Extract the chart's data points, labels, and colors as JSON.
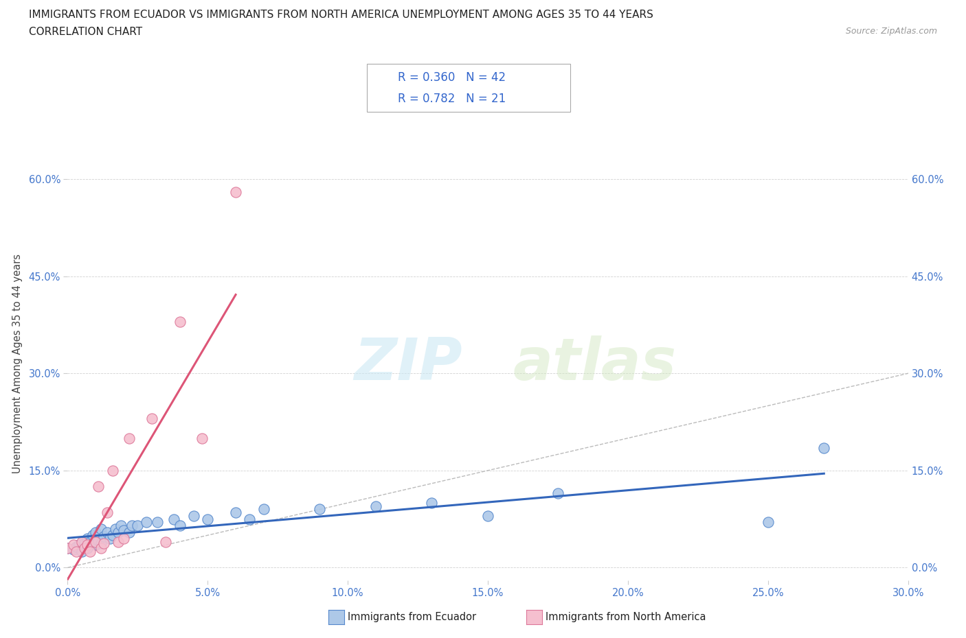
{
  "title_line1": "IMMIGRANTS FROM ECUADOR VS IMMIGRANTS FROM NORTH AMERICA UNEMPLOYMENT AMONG AGES 35 TO 44 YEARS",
  "title_line2": "CORRELATION CHART",
  "source_text": "Source: ZipAtlas.com",
  "ylabel": "Unemployment Among Ages 35 to 44 years",
  "xlim": [
    0.0,
    0.3
  ],
  "ylim": [
    -0.02,
    0.65
  ],
  "xtick_labels": [
    "0.0%",
    "5.0%",
    "10.0%",
    "15.0%",
    "20.0%",
    "25.0%",
    "30.0%"
  ],
  "xtick_vals": [
    0.0,
    0.05,
    0.1,
    0.15,
    0.2,
    0.25,
    0.3
  ],
  "ytick_labels": [
    "0.0%",
    "15.0%",
    "30.0%",
    "45.0%",
    "60.0%"
  ],
  "ytick_vals": [
    0.0,
    0.15,
    0.3,
    0.45,
    0.6
  ],
  "ecuador_color": "#adc8e8",
  "ecuador_edge": "#5588cc",
  "north_america_color": "#f5bfcf",
  "north_america_edge": "#dd7799",
  "trend_ecuador_color": "#3366bb",
  "trend_north_america_color": "#dd5577",
  "diagonal_color": "#bbbbbb",
  "R_ecuador": 0.36,
  "N_ecuador": 42,
  "R_north_america": 0.782,
  "N_north_america": 21,
  "ecuador_x": [
    0.0,
    0.002,
    0.003,
    0.004,
    0.005,
    0.006,
    0.007,
    0.007,
    0.008,
    0.009,
    0.01,
    0.01,
    0.011,
    0.012,
    0.012,
    0.013,
    0.014,
    0.015,
    0.016,
    0.017,
    0.018,
    0.019,
    0.02,
    0.022,
    0.023,
    0.025,
    0.028,
    0.032,
    0.038,
    0.04,
    0.045,
    0.05,
    0.06,
    0.065,
    0.07,
    0.09,
    0.11,
    0.13,
    0.15,
    0.175,
    0.25,
    0.27
  ],
  "ecuador_y": [
    0.03,
    0.028,
    0.032,
    0.035,
    0.025,
    0.038,
    0.03,
    0.045,
    0.04,
    0.05,
    0.035,
    0.055,
    0.042,
    0.038,
    0.06,
    0.048,
    0.055,
    0.045,
    0.05,
    0.06,
    0.055,
    0.065,
    0.058,
    0.055,
    0.065,
    0.065,
    0.07,
    0.07,
    0.075,
    0.065,
    0.08,
    0.075,
    0.085,
    0.075,
    0.09,
    0.09,
    0.095,
    0.1,
    0.08,
    0.115,
    0.07,
    0.185
  ],
  "north_america_x": [
    0.0,
    0.002,
    0.003,
    0.005,
    0.006,
    0.007,
    0.008,
    0.01,
    0.011,
    0.012,
    0.013,
    0.014,
    0.016,
    0.018,
    0.02,
    0.022,
    0.03,
    0.035,
    0.04,
    0.048,
    0.06
  ],
  "north_america_y": [
    0.03,
    0.035,
    0.025,
    0.04,
    0.03,
    0.035,
    0.025,
    0.04,
    0.125,
    0.03,
    0.038,
    0.085,
    0.15,
    0.04,
    0.045,
    0.2,
    0.23,
    0.04,
    0.38,
    0.2,
    0.58
  ],
  "watermark_1": "ZIP",
  "watermark_2": "atlas",
  "background_color": "#ffffff"
}
